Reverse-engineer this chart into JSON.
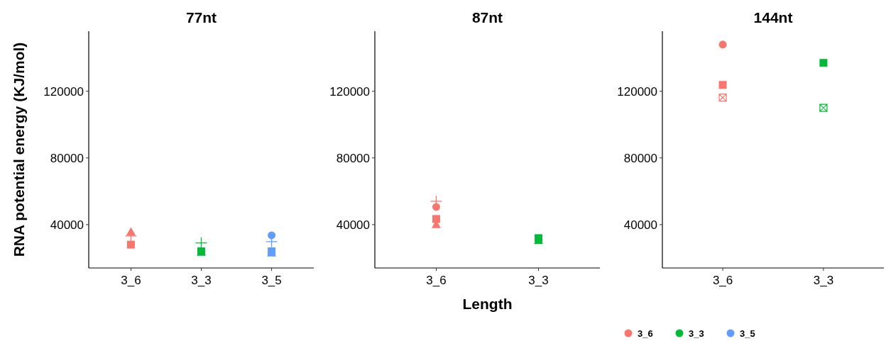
{
  "chart_data": [
    {
      "type": "scatter",
      "title": "77nt",
      "ylabel": "RNA potential energy (KJ/mol)",
      "categories": [
        "3_6",
        "3_3",
        "3_5"
      ],
      "ylim": [
        14000,
        156000
      ],
      "yticks": [
        40000,
        80000,
        120000
      ],
      "annotations": [
        "3_6",
        "3_3",
        "3_5"
      ],
      "series": [
        {
          "marker": "circle",
          "colors": [
            null,
            null,
            "#619cff"
          ],
          "values": [
            null,
            null,
            33600
          ]
        },
        {
          "marker": "triangle",
          "colors": [
            "#f8766d",
            "#00ba38",
            "#619cff"
          ],
          "values": [
            35700,
            23500,
            23000
          ]
        },
        {
          "marker": "square",
          "colors": [
            "#f8766d",
            "#00ba38",
            "#619cff"
          ],
          "values": [
            28000,
            24000,
            24000
          ]
        },
        {
          "marker": "cross",
          "colors": [
            "#f8766d",
            "#00ba38",
            "#619cff"
          ],
          "values": [
            33200,
            29000,
            29800
          ]
        }
      ]
    },
    {
      "type": "scatter",
      "title": "87nt",
      "xlabel": "Length",
      "categories": [
        "3_6",
        "3_3"
      ],
      "ylim": [
        14000,
        156000
      ],
      "yticks": [
        40000,
        80000,
        120000
      ],
      "series": [
        {
          "marker": "circle",
          "colors": [
            "#f8766d",
            null
          ],
          "values": [
            50600,
            null
          ]
        },
        {
          "marker": "triangle",
          "colors": [
            "#f8766d",
            "#00ba38"
          ],
          "values": [
            40000,
            30500
          ]
        },
        {
          "marker": "square",
          "colors": [
            "#f8766d",
            "#00ba38"
          ],
          "values": [
            43400,
            31900
          ]
        },
        {
          "marker": "cross",
          "colors": [
            "#f8766d",
            null
          ],
          "values": [
            54000,
            null
          ]
        }
      ]
    },
    {
      "type": "scatter",
      "title": "144nt",
      "categories": [
        "3_6",
        "3_3"
      ],
      "ylim": [
        14000,
        156000
      ],
      "yticks": [
        40000,
        80000,
        120000
      ],
      "series": [
        {
          "marker": "circle",
          "colors": [
            "#f8766d",
            null
          ],
          "values": [
            148000,
            null
          ]
        },
        {
          "marker": "square",
          "colors": [
            "#f8766d",
            "#00ba38"
          ],
          "values": [
            123800,
            137000
          ]
        },
        {
          "colors": [
            "#f8766d",
            "#00ba38"
          ],
          "values": [
            116200,
            110000
          ]
        }
      ]
    }
  ]
}
